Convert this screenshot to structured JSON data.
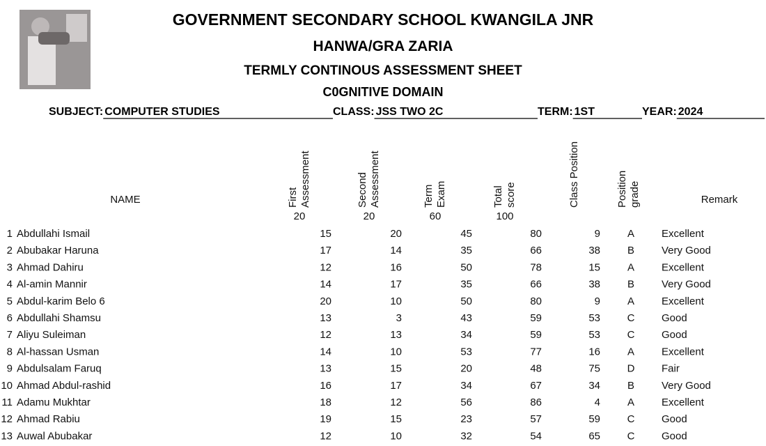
{
  "header": {
    "title": "GOVERNMENT SECONDARY SCHOOL KWANGILA JNR",
    "subtitle": "HANWA/GRA ZARIA",
    "sheet": "TERMLY CONTINOUS ASSESSMENT SHEET",
    "domain": "C0GNITIVE DOMAIN"
  },
  "info": [
    {
      "label": "SUBJECT:",
      "value": "COMPUTER STUDIES"
    },
    {
      "label": "CLASS:",
      "value": "JSS TWO 2C"
    },
    {
      "label": "TERM:",
      "value": "1ST"
    },
    {
      "label": "YEAR:",
      "value": "2024"
    }
  ],
  "table": {
    "columns": [
      {
        "lines": [
          "NAME"
        ]
      },
      {
        "lines": [
          "First",
          "Assessment"
        ],
        "max": "20"
      },
      {
        "lines": [
          "Second",
          "Assessment"
        ],
        "max": "20"
      },
      {
        "lines": [
          "Term",
          "Exam"
        ],
        "max": "60"
      },
      {
        "lines": [
          "Total",
          "score"
        ],
        "max": "100"
      },
      {
        "lines": [
          "Class Position"
        ]
      },
      {
        "lines": [
          "Position",
          "grade"
        ]
      },
      {
        "lines": [
          "Remark"
        ]
      }
    ],
    "rows": [
      [
        "1",
        "Abdullahi Ismail",
        "15",
        "20",
        "45",
        "80",
        "9",
        "A",
        "Excellent"
      ],
      [
        "2",
        "Abubakar Haruna",
        "17",
        "14",
        "35",
        "66",
        "38",
        "B",
        "Very Good"
      ],
      [
        "3",
        "Ahmad Dahiru",
        "12",
        "16",
        "50",
        "78",
        "15",
        "A",
        "Excellent"
      ],
      [
        "4",
        "Al-amin Mannir",
        "14",
        "17",
        "35",
        "66",
        "38",
        "B",
        "Very Good"
      ],
      [
        "5",
        "Abdul-karim Belo 6",
        "20",
        "10",
        "50",
        "80",
        "9",
        "A",
        "Excellent"
      ],
      [
        "6",
        "Abdullahi Shamsu",
        "13",
        "3",
        "43",
        "59",
        "53",
        "C",
        "Good"
      ],
      [
        "7",
        "Aliyu Suleiman",
        "12",
        "13",
        "34",
        "59",
        "53",
        "C",
        "Good"
      ],
      [
        "8",
        "Al-hassan Usman",
        "14",
        "10",
        "53",
        "77",
        "16",
        "A",
        "Excellent"
      ],
      [
        "9",
        "Abdulsalam Faruq",
        "13",
        "15",
        "20",
        "48",
        "75",
        "D",
        "Fair"
      ],
      [
        "10",
        "Ahmad Abdul-rashid",
        "16",
        "17",
        "34",
        "67",
        "34",
        "B",
        "Very Good"
      ],
      [
        "11",
        "Adamu Mukhtar",
        "18",
        "12",
        "56",
        "86",
        "4",
        "A",
        "Excellent"
      ],
      [
        "12",
        "Ahmad Rabiu",
        "19",
        "15",
        "23",
        "57",
        "59",
        "C",
        "Good"
      ],
      [
        "13",
        "Auwal Abubakar",
        "12",
        "10",
        "32",
        "54",
        "65",
        "C",
        "Good"
      ]
    ]
  }
}
